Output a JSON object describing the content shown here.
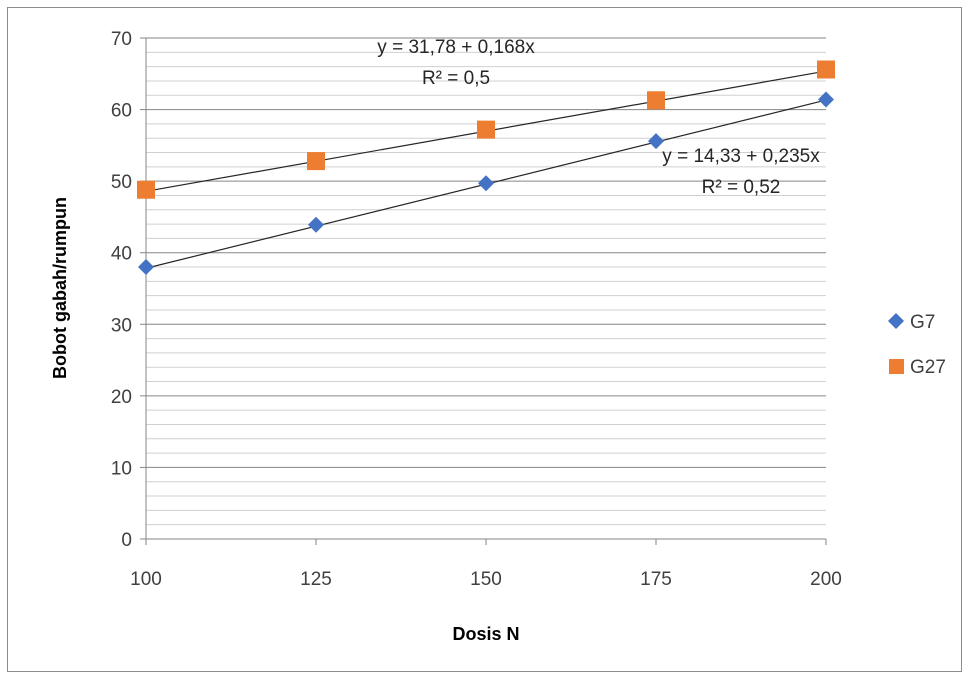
{
  "chart_data": {
    "type": "scatter",
    "title": "",
    "xlabel": "Dosis N",
    "ylabel": "Bobot gabah/rumpun",
    "xlim": [
      100,
      200
    ],
    "ylim": [
      0,
      70
    ],
    "x_ticks": [
      "100",
      "125",
      "150",
      "175",
      "200"
    ],
    "y_ticks": [
      "0",
      "10",
      "20",
      "30",
      "40",
      "50",
      "60",
      "70"
    ],
    "grid": "horizontal major and minor",
    "legend_position": "right",
    "series": [
      {
        "name": "G7",
        "marker": "diamond",
        "color": "#4472C4",
        "x": [
          100,
          125,
          150,
          175,
          200
        ],
        "y": [
          38.0,
          43.9,
          49.7,
          55.6,
          61.4
        ],
        "trendline": {
          "intercept": 14.33,
          "slope": 0.235,
          "equation": "y = 14,33 + 0,235x",
          "r2": "R² = 0,52"
        }
      },
      {
        "name": "G27",
        "marker": "square",
        "color": "#ED7D31",
        "x": [
          100,
          125,
          150,
          175,
          200
        ],
        "y": [
          48.8,
          52.8,
          57.2,
          61.3,
          65.6
        ],
        "trendline": {
          "intercept": 31.78,
          "slope": 0.168,
          "equation": "y = 31,78 + 0,168x",
          "r2": "R² = 0,5"
        }
      }
    ]
  }
}
